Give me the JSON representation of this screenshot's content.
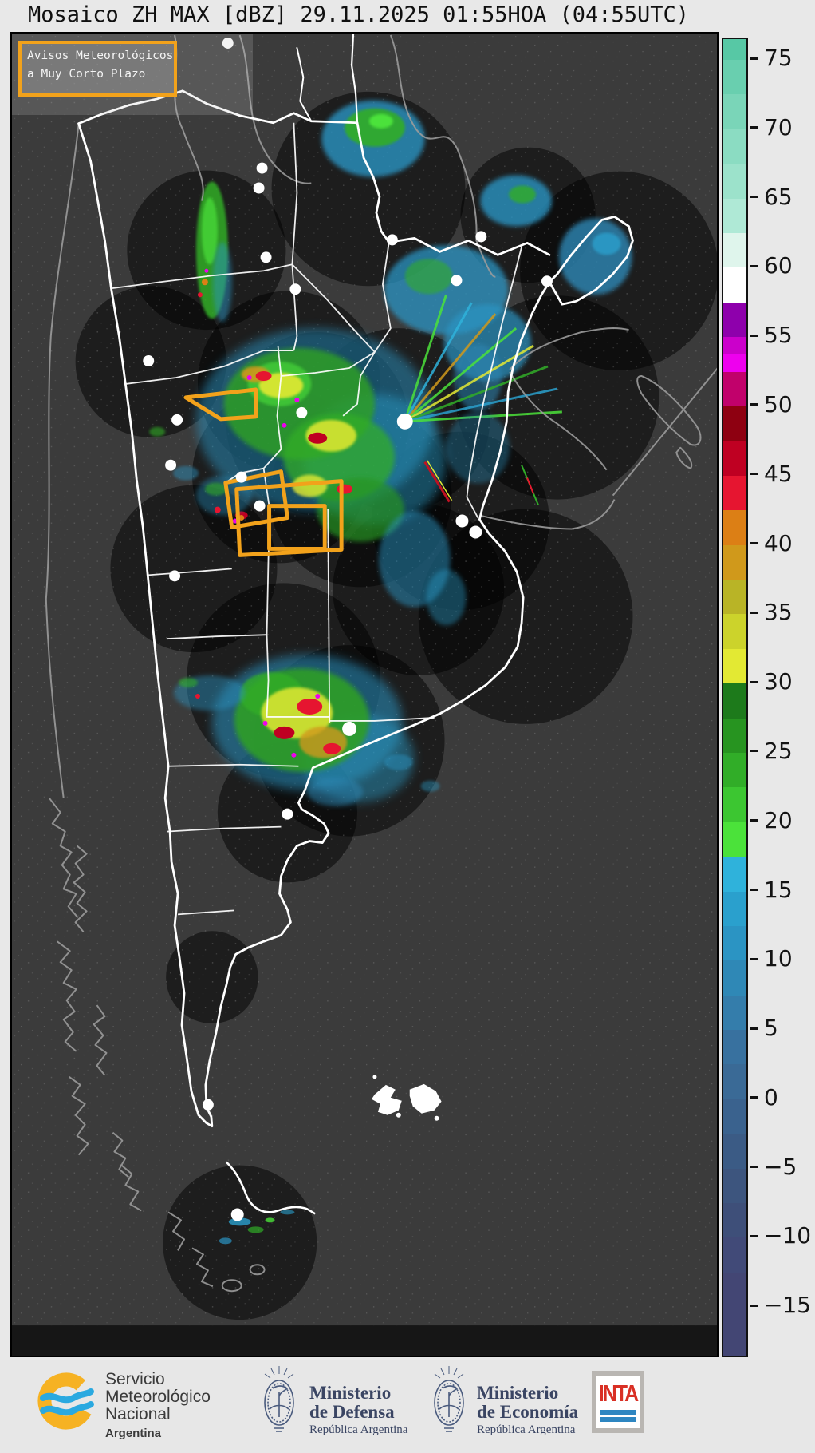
{
  "header": {
    "title": "Mosaico ZH MAX [dBZ] 29.11.2025 01:55HOA (04:55UTC)"
  },
  "map": {
    "warning_label": {
      "line1": "Avisos Meteorológicos",
      "line2": "a Muy Corto Plazo",
      "border_color": "#F2A21B"
    },
    "background_color": "#3B3B3B",
    "country_border_color": "#FFFFFF",
    "neighbor_border_color": "#9B9B9B",
    "warning_polygon_color": "#F2A21B"
  },
  "colorbar": {
    "unit": "dBZ",
    "top_value": 76.5,
    "bottom_value": -18.5,
    "ticks": [
      {
        "value": 75,
        "label": "75"
      },
      {
        "value": 70,
        "label": "70"
      },
      {
        "value": 65,
        "label": "65"
      },
      {
        "value": 60,
        "label": "60"
      },
      {
        "value": 55,
        "label": "55"
      },
      {
        "value": 50,
        "label": "50"
      },
      {
        "value": 45,
        "label": "45"
      },
      {
        "value": 40,
        "label": "40"
      },
      {
        "value": 35,
        "label": "35"
      },
      {
        "value": 30,
        "label": "30"
      },
      {
        "value": 25,
        "label": "25"
      },
      {
        "value": 20,
        "label": "20"
      },
      {
        "value": 15,
        "label": "15"
      },
      {
        "value": 10,
        "label": "10"
      },
      {
        "value": 5,
        "label": "5"
      },
      {
        "value": 0,
        "label": "0"
      },
      {
        "value": -5,
        "label": "−5"
      },
      {
        "value": -10,
        "label": "−10"
      },
      {
        "value": -15,
        "label": "−15"
      }
    ],
    "segments": [
      {
        "from": 76.5,
        "to": 75,
        "color": "#57C8A5"
      },
      {
        "from": 75,
        "to": 72.5,
        "color": "#69CFAF"
      },
      {
        "from": 72.5,
        "to": 70,
        "color": "#7AD5B8"
      },
      {
        "from": 70,
        "to": 67.5,
        "color": "#8BDCC2"
      },
      {
        "from": 67.5,
        "to": 65,
        "color": "#9CE2CB"
      },
      {
        "from": 65,
        "to": 62.5,
        "color": "#AFE9D6"
      },
      {
        "from": 62.5,
        "to": 60,
        "color": "#DFF5EC"
      },
      {
        "from": 60,
        "to": 57.5,
        "color": "#FFFFFF"
      },
      {
        "from": 57.5,
        "to": 55,
        "color": "#8E00AC"
      },
      {
        "from": 55,
        "to": 53.75,
        "color": "#CB00CB"
      },
      {
        "from": 53.75,
        "to": 52.5,
        "color": "#EE00EE"
      },
      {
        "from": 52.5,
        "to": 50,
        "color": "#C1016B"
      },
      {
        "from": 50,
        "to": 47.5,
        "color": "#8E0011"
      },
      {
        "from": 47.5,
        "to": 45,
        "color": "#BF0022"
      },
      {
        "from": 45,
        "to": 42.5,
        "color": "#E61530"
      },
      {
        "from": 42.5,
        "to": 40,
        "color": "#DC7F15"
      },
      {
        "from": 40,
        "to": 37.5,
        "color": "#D0991B"
      },
      {
        "from": 37.5,
        "to": 35,
        "color": "#B9B426"
      },
      {
        "from": 35,
        "to": 32.5,
        "color": "#CCD32B"
      },
      {
        "from": 32.5,
        "to": 30,
        "color": "#E3E933"
      },
      {
        "from": 30,
        "to": 27.5,
        "color": "#1D7A1B"
      },
      {
        "from": 27.5,
        "to": 25,
        "color": "#279420"
      },
      {
        "from": 25,
        "to": 22.5,
        "color": "#31AD28"
      },
      {
        "from": 22.5,
        "to": 20,
        "color": "#3CC631"
      },
      {
        "from": 20,
        "to": 17.5,
        "color": "#4BE23A"
      },
      {
        "from": 17.5,
        "to": 15,
        "color": "#2FB2DB"
      },
      {
        "from": 15,
        "to": 12.5,
        "color": "#2AA0CD"
      },
      {
        "from": 12.5,
        "to": 10,
        "color": "#2B94C3"
      },
      {
        "from": 10,
        "to": 7.5,
        "color": "#2F88B6"
      },
      {
        "from": 7.5,
        "to": 5,
        "color": "#347DAB"
      },
      {
        "from": 5,
        "to": 2.5,
        "color": "#38719F"
      },
      {
        "from": 2.5,
        "to": 0,
        "color": "#3A6A96"
      },
      {
        "from": 0,
        "to": -2.5,
        "color": "#3A628E"
      },
      {
        "from": -2.5,
        "to": -5,
        "color": "#3B5B85"
      },
      {
        "from": -5,
        "to": -7.5,
        "color": "#3D557E"
      },
      {
        "from": -7.5,
        "to": -10,
        "color": "#3E4F79"
      },
      {
        "from": -10,
        "to": -12.5,
        "color": "#414A78"
      },
      {
        "from": -12.5,
        "to": -18.5,
        "color": "#434674"
      }
    ]
  },
  "footer": {
    "smn": {
      "name_lines": [
        "Servicio",
        "Meteorológico",
        "Nacional"
      ],
      "country": "Argentina"
    },
    "defensa": {
      "line1": "Ministerio",
      "line2": "de Defensa",
      "sub": "República Argentina"
    },
    "economia": {
      "line1": "Ministerio",
      "line2": "de Economía",
      "sub": "República Argentina"
    },
    "inta": {
      "label": "INTA"
    }
  }
}
